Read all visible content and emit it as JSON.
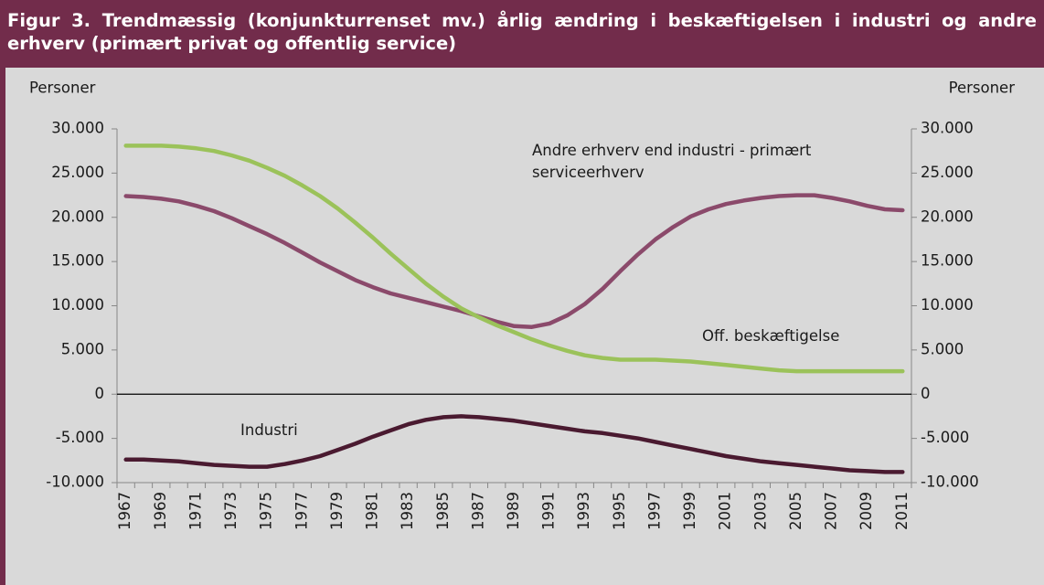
{
  "chart_data": {
    "type": "line",
    "title": "Figur 3. Trendmæssig (konjunkturrenset mv.) årlig ændring i beskæftigelsen i industri og andre erhverv (primært privat og offentlig service)",
    "y_label": "Personer",
    "y2_label": "Personer",
    "categories": [
      "1967",
      null,
      "1969",
      null,
      "1971",
      null,
      "1973",
      null,
      "1975",
      null,
      "1977",
      null,
      "1979",
      null,
      "1981",
      null,
      "1983",
      null,
      "1985",
      null,
      "1987",
      null,
      "1989",
      null,
      "1991",
      null,
      "1993",
      null,
      "1995",
      null,
      "1997",
      null,
      "1999",
      null,
      "2001",
      null,
      "2003",
      null,
      "2005",
      null,
      "2007",
      null,
      "2009",
      null,
      "2011"
    ],
    "ylim": [
      -10000,
      30000
    ],
    "yticks": [
      {
        "value": -10000,
        "label": "-10.000"
      },
      {
        "value": -5000,
        "label": "-5.000"
      },
      0,
      {
        "value": 5000,
        "label": "5.000"
      },
      {
        "value": 10000,
        "label": "10.000"
      },
      {
        "value": 15000,
        "label": "15.000"
      },
      {
        "value": 20000,
        "label": "20.000"
      },
      {
        "value": 25000,
        "label": "25.000"
      },
      {
        "value": 30000,
        "label": "30.000"
      }
    ],
    "y2lim": [
      -10000,
      30000
    ],
    "y2ticks": [
      {
        "value": -10000,
        "label": "-10.000"
      },
      {
        "value": -5000,
        "label": "-5.000"
      },
      0,
      {
        "value": 5000,
        "label": "5.000"
      },
      {
        "value": 10000,
        "label": "10.000"
      },
      {
        "value": 15000,
        "label": "15.000"
      },
      {
        "value": 20000,
        "label": "20.000"
      },
      {
        "value": 25000,
        "label": "25.000"
      },
      {
        "value": 30000,
        "label": "30.000"
      }
    ],
    "series": [
      {
        "name": "Andre erhverv  end industri - primært serviceerhverv",
        "color": "#8b4a6b",
        "values": [
          22400,
          22300,
          22100,
          21800,
          21300,
          20700,
          19900,
          19000,
          18100,
          17100,
          16000,
          14900,
          13900,
          12900,
          12100,
          11400,
          10900,
          10400,
          9900,
          9400,
          8800,
          8200,
          7700,
          7600,
          8000,
          8900,
          10200,
          11900,
          13900,
          15800,
          17500,
          18900,
          20100,
          20900,
          21500,
          21900,
          22200,
          22400,
          22500,
          22500,
          22200,
          21800,
          21300,
          20900,
          20800
        ]
      },
      {
        "name": "Off. beskæftigelse",
        "color": "#9bc25a",
        "values": [
          28100,
          28100,
          28100,
          28000,
          27800,
          27500,
          27000,
          26400,
          25600,
          24700,
          23600,
          22400,
          21000,
          19400,
          17700,
          15900,
          14200,
          12500,
          11000,
          9700,
          8700,
          7800,
          7000,
          6200,
          5500,
          4900,
          4400,
          4100,
          3900,
          3900,
          3900,
          3800,
          3700,
          3500,
          3300,
          3100,
          2900,
          2700,
          2600,
          2600,
          2600,
          2600,
          2600,
          2600,
          2600
        ]
      },
      {
        "name": "Industri",
        "color": "#4a1a30",
        "values": [
          -7400,
          -7400,
          -7500,
          -7600,
          -7800,
          -8000,
          -8100,
          -8200,
          -8200,
          -7900,
          -7500,
          -7000,
          -6300,
          -5600,
          -4800,
          -4100,
          -3400,
          -2900,
          -2600,
          -2500,
          -2600,
          -2800,
          -3000,
          -3300,
          -3600,
          -3900,
          -4200,
          -4400,
          -4700,
          -5000,
          -5400,
          -5800,
          -6200,
          -6600,
          -7000,
          -7300,
          -7600,
          -7800,
          -8000,
          -8200,
          -8400,
          -8600,
          -8700,
          -8800,
          -8800
        ]
      }
    ]
  }
}
